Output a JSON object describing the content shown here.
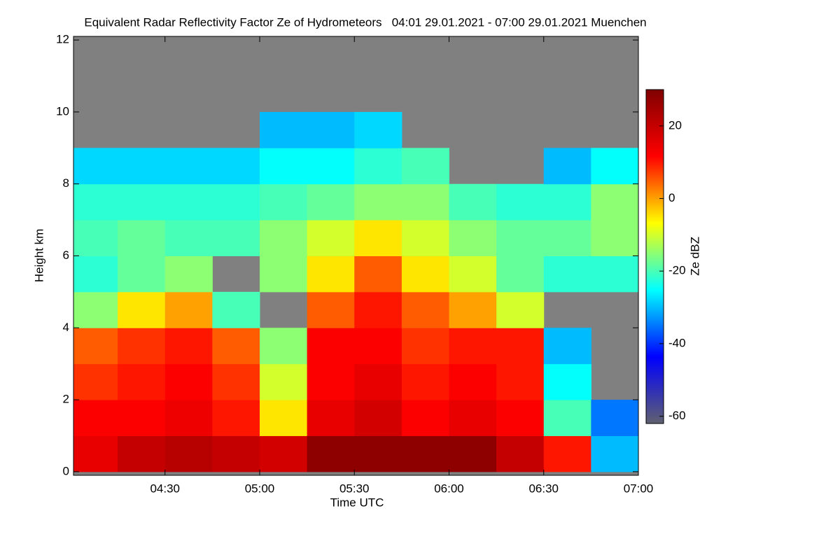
{
  "chart_data": {
    "type": "heatmap",
    "title": "Equivalent Radar Reflectivity Factor Ze of Hydrometeors   04:01 29.01.2021 - 07:00 29.01.2021 Muenchen",
    "xlabel": "Time UTC",
    "ylabel": "Height km",
    "colorbar_label": "Ze dBZ",
    "x": [
      4.125,
      4.375,
      4.625,
      4.875,
      5.125,
      5.375,
      5.625,
      5.875,
      6.125,
      6.375,
      6.625,
      6.875
    ],
    "y": [
      0.5,
      1.5,
      2.5,
      3.5,
      4.5,
      5.5,
      6.5,
      7.5,
      8.5,
      9.5,
      10.5,
      11.5
    ],
    "z": [
      [
        15,
        12,
        8,
        5,
        -15,
        -22,
        -20,
        -22,
        -28,
        null,
        null,
        null
      ],
      [
        20,
        12,
        10,
        8,
        -5,
        -18,
        -18,
        -22,
        -28,
        null,
        null,
        null
      ],
      [
        22,
        14,
        12,
        10,
        0,
        -15,
        -20,
        -22,
        -28,
        null,
        null,
        null
      ],
      [
        20,
        10,
        8,
        5,
        -20,
        null,
        -20,
        -22,
        -28,
        null,
        null,
        null
      ],
      [
        18,
        -5,
        -10,
        -15,
        null,
        -15,
        -15,
        -20,
        -25,
        -30,
        null,
        null
      ],
      [
        28,
        15,
        12,
        12,
        5,
        -5,
        -10,
        -18,
        -25,
        -30,
        null,
        null
      ],
      [
        28,
        18,
        15,
        12,
        10,
        5,
        -5,
        -15,
        -22,
        -28,
        null,
        null
      ],
      [
        28,
        12,
        10,
        8,
        5,
        -5,
        -10,
        -15,
        -20,
        null,
        null,
        null
      ],
      [
        28,
        15,
        12,
        10,
        0,
        -10,
        -15,
        -20,
        null,
        null,
        null,
        null
      ],
      [
        20,
        12,
        10,
        10,
        -10,
        -18,
        -18,
        -22,
        null,
        null,
        null,
        null
      ],
      [
        10,
        -20,
        -25,
        -30,
        null,
        -22,
        -18,
        -22,
        -30,
        null,
        null,
        null
      ],
      [
        -30,
        -35,
        null,
        null,
        null,
        -22,
        -15,
        -15,
        -25,
        null,
        null,
        null
      ]
    ],
    "xlim": [
      4.0167,
      7.0
    ],
    "xticks": [
      {
        "value": 4.5,
        "label": "04:30"
      },
      {
        "value": 5.0,
        "label": "05:00"
      },
      {
        "value": 5.5,
        "label": "05:30"
      },
      {
        "value": 6.0,
        "label": "06:00"
      },
      {
        "value": 6.5,
        "label": "06:30"
      },
      {
        "value": 7.0,
        "label": "07:00"
      }
    ],
    "ylim": [
      -0.1,
      12.1
    ],
    "yticks": [
      0,
      2,
      4,
      6,
      8,
      10,
      12
    ],
    "zlim": [
      -62,
      30
    ],
    "zticks": [
      -60,
      -40,
      -20,
      0,
      20
    ],
    "colormap": [
      "#606070",
      "#0000ff",
      "#00ffff",
      "#ffff00",
      "#ff0000",
      "#800000"
    ],
    "background_color": "#808080"
  }
}
